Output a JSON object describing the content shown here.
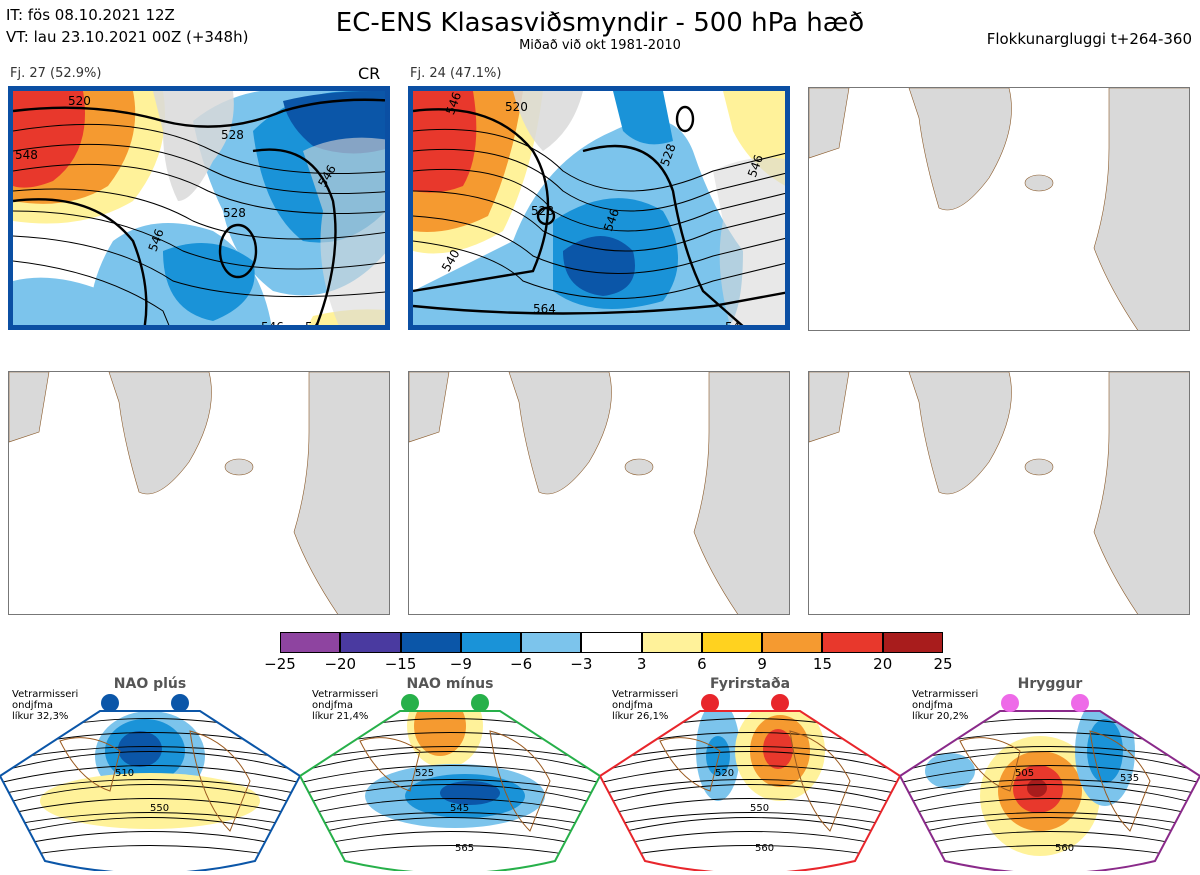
{
  "header": {
    "it_line": "IT: fös 08.10.2021 12Z",
    "vt_line": "VT: lau 23.10.2021 00Z  (+348h)",
    "title": "EC-ENS Klasasviðsmyndir - 500 hPa hæð",
    "subtitle": "Miðað við okt 1981-2010",
    "window": "Flokkunargluggi t+264-360"
  },
  "panels": [
    {
      "label": "Fj. 27 (52.9%)",
      "tag": "CR",
      "contours": [
        "520",
        "528",
        "528",
        "546",
        "546",
        "548",
        "546",
        "54"
      ]
    },
    {
      "label": "Fj. 24 (47.1%)",
      "tag": "",
      "contours": [
        "546",
        "520",
        "528",
        "528",
        "546",
        "540",
        "546",
        "564",
        "54"
      ]
    },
    {
      "label": "",
      "tag": ""
    },
    {
      "label": "",
      "tag": ""
    },
    {
      "label": "",
      "tag": ""
    },
    {
      "label": "",
      "tag": ""
    }
  ],
  "colorbar": {
    "ticks": [
      "−25",
      "−20",
      "−15",
      "−9",
      "−6",
      "−3",
      "3",
      "6",
      "9",
      "15",
      "20",
      "25"
    ],
    "colors": [
      "#8e44a0",
      "#4a3aa0",
      "#0b56a8",
      "#1a93d8",
      "#7cc4ec",
      "#ffffff",
      "#fff29a",
      "#ffd21f",
      "#f59a30",
      "#e8382c",
      "#a81c1c"
    ]
  },
  "regimes": [
    {
      "title": "NAO plús",
      "info": [
        "Vetrarmisseri",
        "ondjfma",
        "líkur 32,3%"
      ],
      "dot_color": "#0b56a8",
      "frame_color": "#0b56a8",
      "contours": [
        "510",
        "550"
      ]
    },
    {
      "title": "NAO mínus",
      "info": [
        "Vetrarmisseri",
        "ondjfma",
        "líkur 21,4%"
      ],
      "dot_color": "#27b04a",
      "frame_color": "#27b04a",
      "contours": [
        "525",
        "545",
        "565"
      ]
    },
    {
      "title": "Fyrirstaða",
      "info": [
        "Vetrarmisseri",
        "ondjfma",
        "líkur 26,1%"
      ],
      "dot_color": "#e8262c",
      "frame_color": "#e8262c",
      "contours": [
        "520",
        "550",
        "560"
      ]
    },
    {
      "title": "Hryggur",
      "info": [
        "Vetrarmisseri",
        "ondjfma",
        "líkur 20,2%"
      ],
      "dot_color": "#ee6ae8",
      "frame_color": "#8a2a8a",
      "contours": [
        "505",
        "535",
        "560"
      ]
    }
  ]
}
